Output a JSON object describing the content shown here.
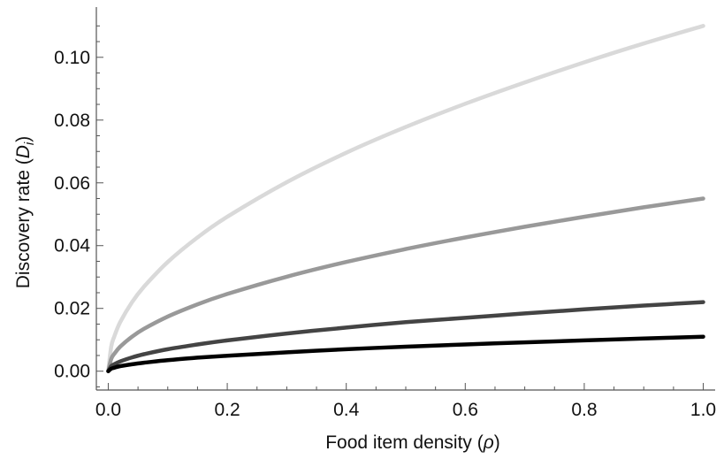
{
  "chart_data": {
    "type": "line",
    "title": "",
    "xlabel": {
      "prefix": "Food item density (",
      "symbol": "ρ",
      "suffix": ")"
    },
    "ylabel": {
      "prefix": "Discovery rate (",
      "symbol": "D",
      "subscript": "i",
      "suffix": ")"
    },
    "xlim": [
      -0.02,
      1.02
    ],
    "ylim": [
      -0.006,
      0.116
    ],
    "x_ticks": [
      "0.0",
      "0.2",
      "0.4",
      "0.6",
      "0.8",
      "1.0"
    ],
    "y_ticks": [
      "0.00",
      "0.02",
      "0.04",
      "0.06",
      "0.08",
      "0.10"
    ],
    "grid": false,
    "legend": "none",
    "x": [
      0,
      0.005,
      0.01,
      0.02,
      0.04,
      0.06,
      0.1,
      0.15,
      0.2,
      0.3,
      0.4,
      0.5,
      0.6,
      0.7,
      0.8,
      0.9,
      1.0
    ],
    "series": [
      {
        "color": "#d9d9d9",
        "values": [
          0,
          0.0078,
          0.011,
          0.0156,
          0.022,
          0.0269,
          0.0348,
          0.0426,
          0.0492,
          0.0602,
          0.0696,
          0.0778,
          0.0852,
          0.092,
          0.0984,
          0.1044,
          0.11
        ]
      },
      {
        "color": "#999999",
        "values": [
          0,
          0.0039,
          0.0055,
          0.0078,
          0.011,
          0.0135,
          0.0174,
          0.0213,
          0.0246,
          0.0301,
          0.0348,
          0.0389,
          0.0426,
          0.046,
          0.0492,
          0.0522,
          0.055
        ]
      },
      {
        "color": "#444444",
        "values": [
          0,
          0.0016,
          0.0022,
          0.0031,
          0.0044,
          0.0054,
          0.007,
          0.0085,
          0.0098,
          0.012,
          0.0139,
          0.0156,
          0.017,
          0.0184,
          0.0197,
          0.0209,
          0.022
        ]
      },
      {
        "color": "#000000",
        "values": [
          0,
          0.0008,
          0.0011,
          0.0016,
          0.0022,
          0.0027,
          0.0035,
          0.0043,
          0.0049,
          0.006,
          0.007,
          0.0078,
          0.0085,
          0.0092,
          0.0098,
          0.0104,
          0.011
        ]
      }
    ]
  }
}
